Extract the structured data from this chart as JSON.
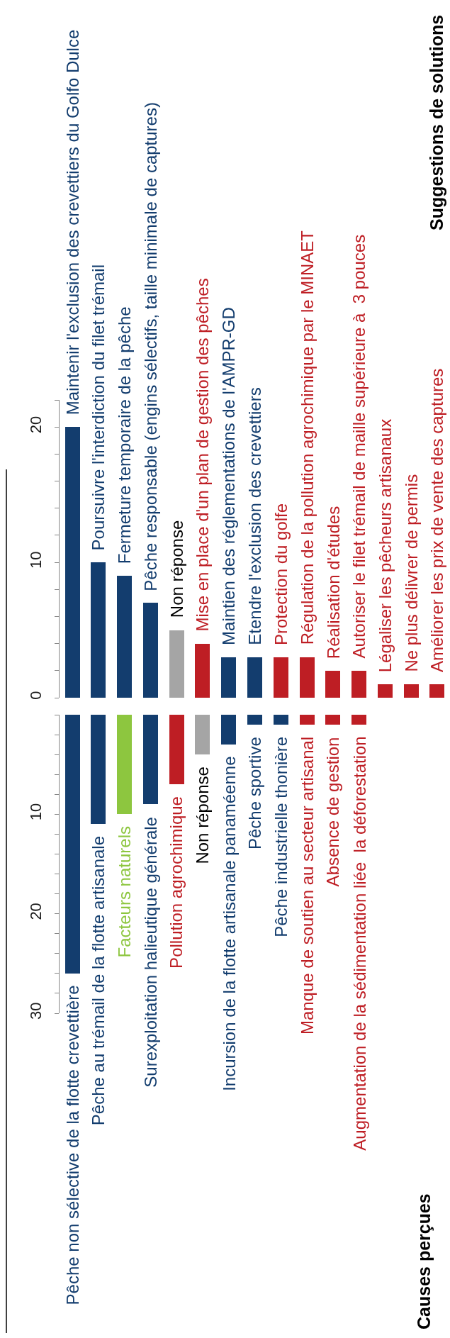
{
  "chart_data": [
    {
      "type": "bar",
      "title": "Suggestions de solutions",
      "categories": [
        "Maintenir l'exclusion des crevettiers du Golfo Dulce",
        "Poursuivre l'interdiction du filet trémail",
        "Fermeture temporaire de la pêche",
        "Pêche responsable (engins sélectifs, taille minimale de captures)",
        "Non réponse",
        "Mise en place d'un plan de gestion des pêches",
        "Maintien des réglementations de l'AMPR-GD",
        "Etendre l'exclusion des crevettiers",
        "Protection du golfe",
        "Régulation de la pollution agrochimique par le MINAET",
        "Réalisation d'études",
        "Autoriser le filet trémail de maille supérieure à  3 pouces",
        "Légaliser les pêcheurs artisanaux",
        "Ne plus délivrer de permis",
        "Améliorer les prix de vente des captures"
      ],
      "values": [
        20,
        10,
        9,
        7,
        5,
        4,
        3,
        3,
        3,
        3,
        2,
        2,
        1,
        1,
        1
      ],
      "colors": [
        "#133d6e",
        "#133d6e",
        "#133d6e",
        "#133d6e",
        "#a5a5a5",
        "#be1e24",
        "#133d6e",
        "#133d6e",
        "#be1e24",
        "#be1e24",
        "#be1e24",
        "#be1e24",
        "#be1e24",
        "#be1e24",
        "#be1e24"
      ],
      "ylim": [
        0,
        22
      ],
      "yticks": [
        0,
        {
          "value": 2,
          "label": null
        },
        {
          "value": 4,
          "label": null
        },
        {
          "value": 6,
          "label": null
        },
        {
          "value": 8,
          "label": null
        },
        10,
        {
          "value": 12,
          "label": null
        },
        {
          "value": 14,
          "label": null
        },
        {
          "value": 16,
          "label": null
        },
        {
          "value": 18,
          "label": null
        },
        20,
        {
          "value": 22,
          "label": null
        }
      ],
      "tick_labels": "y"
    },
    {
      "type": "bar",
      "annotations": [
        "Causes perçues"
      ],
      "categories": [
        "Pêche non sélective de la flotte crevettière",
        "Pêche au trémail de la flotte artisanale",
        "Facteurs naturels",
        "Surexploitation halieutique générale",
        "Pollution agrochimique",
        "Non réponse",
        "Incursion de la flotte artisanale panaméenne",
        "Pêche sportive",
        "Pêche industrielle thonière",
        "Manque de soutien au secteur artisanal",
        "Absence de gestion",
        "Augmentation de la sédimentation liée  la déforestation"
      ],
      "values": [
        26,
        11,
        10,
        9,
        7,
        4,
        3,
        1,
        1,
        1,
        1,
        1
      ],
      "colors": [
        "#133d6e",
        "#133d6e",
        "#8dc63f",
        "#133d6e",
        "#be1e24",
        "#a5a5a5",
        "#133d6e",
        "#133d6e",
        "#133d6e",
        "#be1e24",
        "#be1e24",
        "#be1e24"
      ],
      "ylim": [
        30,
        0
      ],
      "yticks": [
        {
          "value": 0,
          "label": null
        },
        {
          "value": 2,
          "label": null
        },
        {
          "value": 4,
          "label": null
        },
        {
          "value": 6,
          "label": null
        },
        {
          "value": 8,
          "label": null
        },
        10,
        {
          "value": 12,
          "label": null
        },
        {
          "value": 14,
          "label": null
        },
        {
          "value": 16,
          "label": null
        },
        {
          "value": 18,
          "label": null
        },
        20,
        {
          "value": 22,
          "label": null
        },
        {
          "value": 24,
          "label": null
        },
        {
          "value": 26,
          "label": null
        },
        {
          "value": 28,
          "label": null
        },
        30
      ],
      "tick_labels": "y"
    }
  ]
}
